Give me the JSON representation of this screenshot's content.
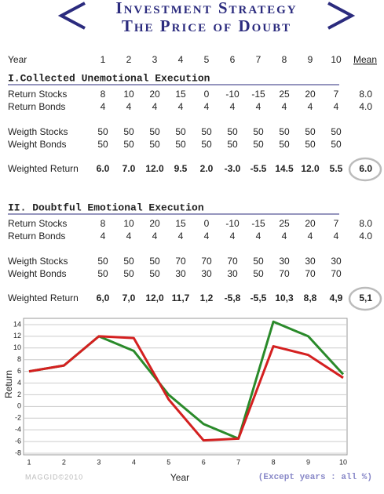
{
  "header": {
    "title": "Investment Strategy",
    "subtitle": "The Price of Doubt"
  },
  "columns": {
    "label": "Year",
    "years": [
      "1",
      "2",
      "3",
      "4",
      "5",
      "6",
      "7",
      "8",
      "9",
      "10"
    ],
    "mean": "Mean"
  },
  "sections": [
    {
      "title": "I.Collected Unemotional Execution",
      "color": "#1e7b35",
      "rows": [
        {
          "label": "Return Stocks",
          "values": [
            "8",
            "10",
            "20",
            "15",
            "0",
            "-10",
            "-15",
            "25",
            "20",
            "7"
          ],
          "mean": "8.0"
        },
        {
          "label": "Return Bonds",
          "values": [
            "4",
            "4",
            "4",
            "4",
            "4",
            "4",
            "4",
            "4",
            "4",
            "4"
          ],
          "mean": "4.0"
        },
        {
          "label": "Weigth Stocks",
          "values": [
            "50",
            "50",
            "50",
            "50",
            "50",
            "50",
            "50",
            "50",
            "50",
            "50"
          ]
        },
        {
          "label": "Weight Bonds",
          "values": [
            "50",
            "50",
            "50",
            "50",
            "50",
            "50",
            "50",
            "50",
            "50",
            "50"
          ]
        },
        {
          "label": "Weighted Return",
          "values": [
            "6.0",
            "7.0",
            "12.0",
            "9.5",
            "2.0",
            "-3.0",
            "-5.5",
            "14.5",
            "12.0",
            "5.5"
          ],
          "mean": "6.0"
        }
      ]
    },
    {
      "title": "II. Doubtful Emotional Execution",
      "color": "#d02424",
      "rows": [
        {
          "label": "Return Stocks",
          "values": [
            "8",
            "10",
            "20",
            "15",
            "0",
            "-10",
            "-15",
            "25",
            "20",
            "7"
          ],
          "mean": "8.0"
        },
        {
          "label": "Return Bonds",
          "values": [
            "4",
            "4",
            "4",
            "4",
            "4",
            "4",
            "4",
            "4",
            "4",
            "4"
          ],
          "mean": "4.0"
        },
        {
          "label": "Weigth Stocks",
          "values": [
            "50",
            "50",
            "50",
            "70",
            "70",
            "70",
            "50",
            "30",
            "30",
            "30"
          ]
        },
        {
          "label": "Weight Bonds",
          "values": [
            "50",
            "50",
            "50",
            "30",
            "30",
            "30",
            "50",
            "70",
            "70",
            "70"
          ]
        },
        {
          "label": "Weighted Return",
          "values": [
            "6,0",
            "7,0",
            "12,0",
            "11,7",
            "1,2",
            "-5,8",
            "-5,5",
            "10,3",
            "8,8",
            "4,9"
          ],
          "mean": "5,1"
        }
      ]
    }
  ],
  "chart_data": {
    "type": "line",
    "x_label": "Year",
    "y_label": "Return",
    "x": [
      1,
      2,
      3,
      4,
      5,
      6,
      7,
      8,
      9,
      10
    ],
    "series": [
      {
        "color": "#2a8a2a",
        "values": [
          6,
          7,
          12,
          9.5,
          2,
          -3,
          -5.5,
          14.5,
          12,
          5.5
        ]
      },
      {
        "color": "#d42020",
        "values": [
          6,
          7,
          12,
          11.7,
          1.2,
          -5.8,
          -5.5,
          10.3,
          8.8,
          4.9
        ]
      }
    ],
    "xlim": [
      1,
      10
    ],
    "xticks": [
      1,
      2,
      3,
      4,
      5,
      6,
      7,
      8,
      9,
      10
    ],
    "ylim": [
      -8,
      15
    ],
    "yticks": [
      -8,
      -6,
      -4,
      -2,
      0,
      2,
      4,
      6,
      8,
      10,
      12,
      14
    ],
    "grid": true
  },
  "footer": {
    "credit": "MAGGID©2010",
    "note": "(Except years : all %)"
  }
}
